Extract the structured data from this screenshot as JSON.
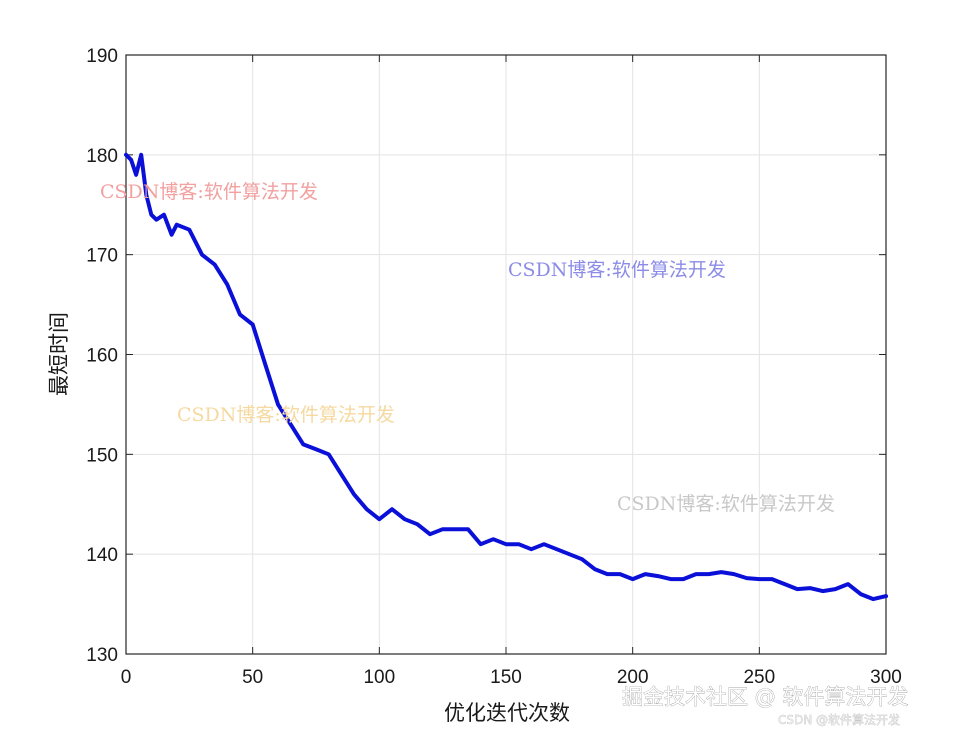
{
  "chart_data": {
    "type": "line",
    "xlabel": "优化迭代次数",
    "ylabel": "最短时间",
    "xlim": [
      0,
      300
    ],
    "ylim": [
      130,
      190
    ],
    "xticks": [
      0,
      50,
      100,
      150,
      200,
      250,
      300
    ],
    "yticks": [
      130,
      140,
      150,
      160,
      170,
      180,
      190
    ],
    "grid": true,
    "series": [
      {
        "color": "#0a10d8",
        "x": [
          0,
          2,
          4,
          6,
          8,
          10,
          12,
          15,
          18,
          20,
          25,
          30,
          35,
          40,
          45,
          50,
          55,
          60,
          65,
          70,
          75,
          80,
          85,
          90,
          95,
          100,
          105,
          110,
          115,
          120,
          125,
          130,
          135,
          140,
          145,
          150,
          155,
          160,
          165,
          170,
          175,
          180,
          185,
          190,
          195,
          200,
          205,
          210,
          215,
          220,
          225,
          230,
          235,
          240,
          245,
          250,
          255,
          260,
          265,
          270,
          275,
          280,
          285,
          290,
          295,
          300
        ],
        "y": [
          180,
          179.5,
          178,
          180,
          176,
          174,
          173.5,
          174,
          172,
          173,
          172.5,
          170,
          169,
          167,
          164,
          163,
          159,
          155,
          153,
          151,
          150.5,
          150,
          148,
          146,
          144.5,
          143.5,
          144.5,
          143.5,
          143,
          142,
          142.5,
          142.5,
          142.5,
          141,
          141.5,
          141,
          141,
          140.5,
          141,
          140.5,
          140,
          139.5,
          138.5,
          138,
          138,
          137.5,
          138,
          137.8,
          137.5,
          137.5,
          138,
          138,
          138.2,
          138,
          137.6,
          137.5,
          137.5,
          137,
          136.5,
          136.6,
          136.3,
          136.5,
          137,
          136,
          135.5,
          135.8
        ]
      }
    ]
  },
  "watermarks": [
    {
      "text": "CSDN博客:软件算法开发",
      "color": "#f2a0a0"
    },
    {
      "text": "CSDN博客:软件算法开发",
      "color": "#8c8ce8"
    },
    {
      "text": "CSDN博客:软件算法开发",
      "color": "#f5d9a0"
    },
    {
      "text": "CSDN博客:软件算法开发",
      "color": "#c8c8c8"
    }
  ],
  "corner_marks": {
    "line1": "掘金技术社区 @ 软件算法开发",
    "line2": "CSDN @软件算法开发"
  }
}
